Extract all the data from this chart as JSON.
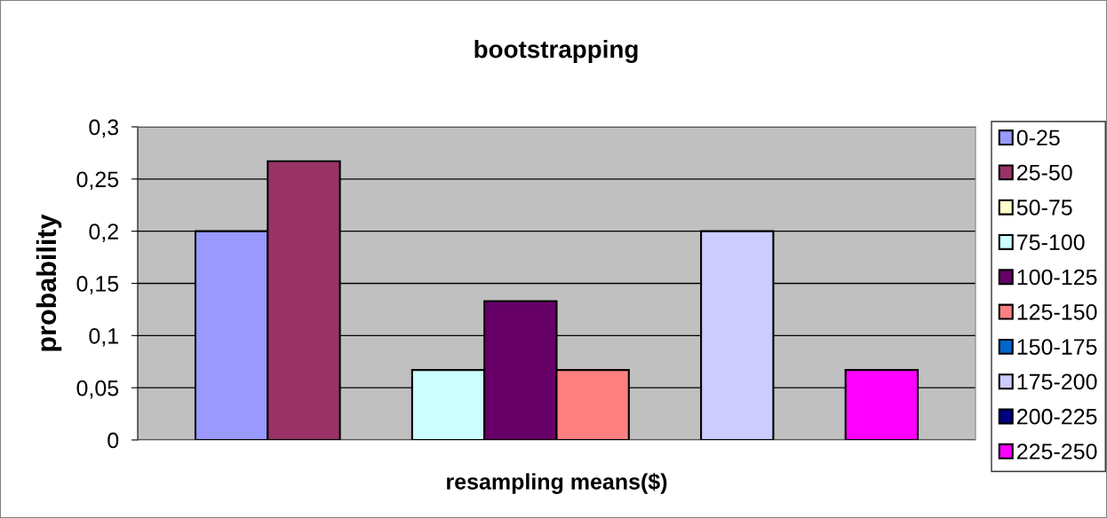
{
  "chart_data": {
    "type": "bar",
    "title": "bootstrapping",
    "xlabel": "resampling means($)",
    "ylabel": "probability",
    "categories": [
      null
    ],
    "series": [
      {
        "name": "0-25",
        "color": "#9999ff",
        "values": [
          0.2
        ]
      },
      {
        "name": "25-50",
        "color": "#993366",
        "values": [
          0.267
        ]
      },
      {
        "name": "50-75",
        "color": "#ffffcc",
        "values": [
          null
        ]
      },
      {
        "name": "75-100",
        "color": "#ccffff",
        "values": [
          0.067
        ]
      },
      {
        "name": "100-125",
        "color": "#660066",
        "values": [
          0.133
        ]
      },
      {
        "name": "125-150",
        "color": "#ff8080",
        "values": [
          0.067
        ]
      },
      {
        "name": "150-175",
        "color": "#0066cc",
        "values": [
          null
        ]
      },
      {
        "name": "175-200",
        "color": "#ccccff",
        "values": [
          0.2
        ]
      },
      {
        "name": "200-225",
        "color": "#000080",
        "values": [
          null
        ]
      },
      {
        "name": "225-250",
        "color": "#ff00ff",
        "values": [
          0.067
        ]
      }
    ],
    "ylim": [
      0,
      0.3
    ],
    "yticks": [
      0,
      {
        "value": 0.05,
        "label": "0,05"
      },
      {
        "value": 0.1,
        "label": "0,1"
      },
      {
        "value": 0.15,
        "label": "0,15"
      },
      {
        "value": 0.2,
        "label": "0,2"
      },
      {
        "value": 0.25,
        "label": "0,25"
      },
      {
        "value": 0.3,
        "label": "0,3"
      }
    ],
    "grid": "y",
    "legend": "right"
  }
}
